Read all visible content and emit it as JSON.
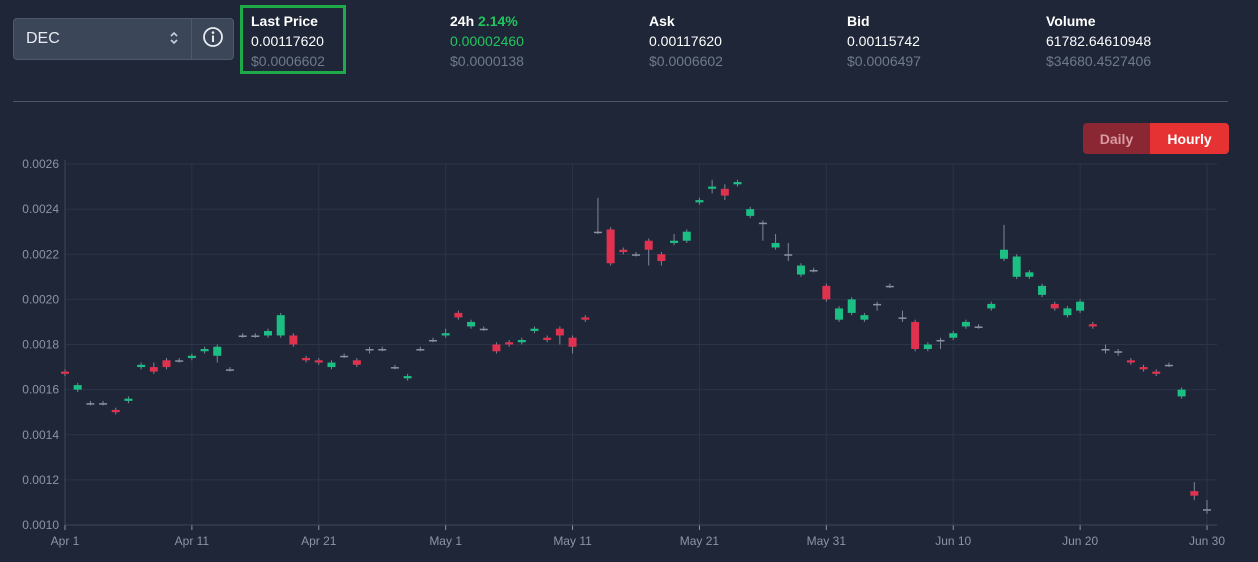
{
  "selector": {
    "symbol": "DEC"
  },
  "stats": {
    "last_price": {
      "label": "Last Price",
      "value": "0.00117620",
      "usd": "$0.0006602"
    },
    "change_24h": {
      "label": "24h",
      "pct": "2.14%",
      "value": "0.00002460",
      "usd": "$0.0000138"
    },
    "ask": {
      "label": "Ask",
      "value": "0.00117620",
      "usd": "$0.0006602"
    },
    "bid": {
      "label": "Bid",
      "value": "0.00115742",
      "usd": "$0.0006497"
    },
    "volume": {
      "label": "Volume",
      "value": "61782.64610948",
      "usd": "$34680.4527406"
    }
  },
  "toggle": {
    "daily": "Daily",
    "hourly": "Hourly",
    "active": "hourly"
  },
  "colors": {
    "up": "#1bbf83",
    "down": "#e0324f",
    "grid": "#2b3547",
    "axis_text": "#8b95a5",
    "background": "#1e2638"
  },
  "chart_data": {
    "type": "candlestick",
    "ylim": [
      0.001,
      0.0026
    ],
    "y_ticks": [
      "0.0010",
      "0.0012",
      "0.0014",
      "0.0016",
      "0.0018",
      "0.0020",
      "0.0022",
      "0.0024",
      "0.0026"
    ],
    "x_ticks": [
      {
        "label": "Apr 1",
        "day": 1
      },
      {
        "label": "Apr 11",
        "day": 11
      },
      {
        "label": "Apr 21",
        "day": 21
      },
      {
        "label": "May 1",
        "day": 31
      },
      {
        "label": "May 11",
        "day": 41
      },
      {
        "label": "May 21",
        "day": 51
      },
      {
        "label": "May 31",
        "day": 61
      },
      {
        "label": "Jun 10",
        "day": 71
      },
      {
        "label": "Jun 20",
        "day": 81
      },
      {
        "label": "Jun 30",
        "day": 91
      }
    ],
    "grid": true,
    "candles": [
      {
        "day": 1,
        "open": 0.00168,
        "close": 0.00167,
        "high": 0.00169,
        "low": 0.00166
      },
      {
        "day": 2,
        "open": 0.0016,
        "close": 0.00162,
        "high": 0.00163,
        "low": 0.00159
      },
      {
        "day": 3,
        "open": 0.00154,
        "close": 0.00154,
        "high": 0.00155,
        "low": 0.00153
      },
      {
        "day": 4,
        "open": 0.00154,
        "close": 0.00154,
        "high": 0.00155,
        "low": 0.00153
      },
      {
        "day": 5,
        "open": 0.00151,
        "close": 0.0015,
        "high": 0.00152,
        "low": 0.00149
      },
      {
        "day": 6,
        "open": 0.00155,
        "close": 0.00156,
        "high": 0.00157,
        "low": 0.00154
      },
      {
        "day": 7,
        "open": 0.0017,
        "close": 0.00171,
        "high": 0.00172,
        "low": 0.00169
      },
      {
        "day": 8,
        "open": 0.0017,
        "close": 0.00168,
        "high": 0.00172,
        "low": 0.00167
      },
      {
        "day": 9,
        "open": 0.00173,
        "close": 0.0017,
        "high": 0.00174,
        "low": 0.00169
      },
      {
        "day": 10,
        "open": 0.00173,
        "close": 0.00173,
        "high": 0.00174,
        "low": 0.00172
      },
      {
        "day": 11,
        "open": 0.00174,
        "close": 0.00175,
        "high": 0.00176,
        "low": 0.00173
      },
      {
        "day": 12,
        "open": 0.00177,
        "close": 0.00178,
        "high": 0.00179,
        "low": 0.00176
      },
      {
        "day": 13,
        "open": 0.00175,
        "close": 0.00179,
        "high": 0.0018,
        "low": 0.00172
      },
      {
        "day": 14,
        "open": 0.00169,
        "close": 0.00169,
        "high": 0.0017,
        "low": 0.00168
      },
      {
        "day": 15,
        "open": 0.00184,
        "close": 0.00184,
        "high": 0.00185,
        "low": 0.00183
      },
      {
        "day": 16,
        "open": 0.00184,
        "close": 0.00184,
        "high": 0.00185,
        "low": 0.00183
      },
      {
        "day": 17,
        "open": 0.00184,
        "close": 0.00186,
        "high": 0.00187,
        "low": 0.00183
      },
      {
        "day": 18,
        "open": 0.00184,
        "close": 0.00193,
        "high": 0.00194,
        "low": 0.00183
      },
      {
        "day": 19,
        "open": 0.00184,
        "close": 0.0018,
        "high": 0.00185,
        "low": 0.00179
      },
      {
        "day": 20,
        "open": 0.00174,
        "close": 0.00173,
        "high": 0.00175,
        "low": 0.00172
      },
      {
        "day": 21,
        "open": 0.00173,
        "close": 0.00172,
        "high": 0.00174,
        "low": 0.00171
      },
      {
        "day": 22,
        "open": 0.0017,
        "close": 0.00172,
        "high": 0.00173,
        "low": 0.00169
      },
      {
        "day": 23,
        "open": 0.00175,
        "close": 0.00175,
        "high": 0.00176,
        "low": 0.00174
      },
      {
        "day": 24,
        "open": 0.00173,
        "close": 0.00171,
        "high": 0.00174,
        "low": 0.0017
      },
      {
        "day": 25,
        "open": 0.00178,
        "close": 0.00178,
        "high": 0.00179,
        "low": 0.00176
      },
      {
        "day": 26,
        "open": 0.00178,
        "close": 0.00178,
        "high": 0.00179,
        "low": 0.00177
      },
      {
        "day": 27,
        "open": 0.0017,
        "close": 0.0017,
        "high": 0.00171,
        "low": 0.00169
      },
      {
        "day": 28,
        "open": 0.00165,
        "close": 0.00166,
        "high": 0.00167,
        "low": 0.00164
      },
      {
        "day": 29,
        "open": 0.00178,
        "close": 0.00178,
        "high": 0.00179,
        "low": 0.00177
      },
      {
        "day": 30,
        "open": 0.00182,
        "close": 0.00182,
        "high": 0.00183,
        "low": 0.00181
      },
      {
        "day": 31,
        "open": 0.00184,
        "close": 0.00185,
        "high": 0.00187,
        "low": 0.00183
      },
      {
        "day": 32,
        "open": 0.00194,
        "close": 0.00192,
        "high": 0.00195,
        "low": 0.00191
      },
      {
        "day": 33,
        "open": 0.00188,
        "close": 0.0019,
        "high": 0.00191,
        "low": 0.00187
      },
      {
        "day": 34,
        "open": 0.00187,
        "close": 0.00187,
        "high": 0.00188,
        "low": 0.00186
      },
      {
        "day": 35,
        "open": 0.0018,
        "close": 0.00177,
        "high": 0.00181,
        "low": 0.00176
      },
      {
        "day": 36,
        "open": 0.00181,
        "close": 0.0018,
        "high": 0.00182,
        "low": 0.00179
      },
      {
        "day": 37,
        "open": 0.00181,
        "close": 0.00182,
        "high": 0.00183,
        "low": 0.0018
      },
      {
        "day": 38,
        "open": 0.00186,
        "close": 0.00187,
        "high": 0.00188,
        "low": 0.00185
      },
      {
        "day": 39,
        "open": 0.00183,
        "close": 0.00182,
        "high": 0.00184,
        "low": 0.00181
      },
      {
        "day": 40,
        "open": 0.00187,
        "close": 0.00184,
        "high": 0.00188,
        "low": 0.0018
      },
      {
        "day": 41,
        "open": 0.00183,
        "close": 0.00179,
        "high": 0.00184,
        "low": 0.00176
      },
      {
        "day": 42,
        "open": 0.00192,
        "close": 0.00191,
        "high": 0.00193,
        "low": 0.0019
      },
      {
        "day": 43,
        "open": 0.0023,
        "close": 0.0023,
        "high": 0.00245,
        "low": 0.00229
      },
      {
        "day": 44,
        "open": 0.00231,
        "close": 0.00216,
        "high": 0.00232,
        "low": 0.00215
      },
      {
        "day": 45,
        "open": 0.00222,
        "close": 0.00221,
        "high": 0.00223,
        "low": 0.0022
      },
      {
        "day": 46,
        "open": 0.0022,
        "close": 0.0022,
        "high": 0.00221,
        "low": 0.00219
      },
      {
        "day": 47,
        "open": 0.00226,
        "close": 0.00222,
        "high": 0.00227,
        "low": 0.00215
      },
      {
        "day": 48,
        "open": 0.0022,
        "close": 0.00217,
        "high": 0.00221,
        "low": 0.00215
      },
      {
        "day": 49,
        "open": 0.00225,
        "close": 0.00226,
        "high": 0.00229,
        "low": 0.00224
      },
      {
        "day": 50,
        "open": 0.00226,
        "close": 0.0023,
        "high": 0.00231,
        "low": 0.00225
      },
      {
        "day": 51,
        "open": 0.00243,
        "close": 0.00244,
        "high": 0.00245,
        "low": 0.00242
      },
      {
        "day": 52,
        "open": 0.00249,
        "close": 0.0025,
        "high": 0.00253,
        "low": 0.00247
      },
      {
        "day": 53,
        "open": 0.00249,
        "close": 0.00246,
        "high": 0.00251,
        "low": 0.00244
      },
      {
        "day": 54,
        "open": 0.00251,
        "close": 0.00252,
        "high": 0.00253,
        "low": 0.0025
      },
      {
        "day": 55,
        "open": 0.00237,
        "close": 0.0024,
        "high": 0.00241,
        "low": 0.00236
      },
      {
        "day": 56,
        "open": 0.00234,
        "close": 0.00234,
        "high": 0.00235,
        "low": 0.00226
      },
      {
        "day": 57,
        "open": 0.00223,
        "close": 0.00225,
        "high": 0.00229,
        "low": 0.00222
      },
      {
        "day": 58,
        "open": 0.0022,
        "close": 0.0022,
        "high": 0.00225,
        "low": 0.00217
      },
      {
        "day": 59,
        "open": 0.00211,
        "close": 0.00215,
        "high": 0.00216,
        "low": 0.0021
      },
      {
        "day": 60,
        "open": 0.00213,
        "close": 0.00213,
        "high": 0.00214,
        "low": 0.00212
      },
      {
        "day": 61,
        "open": 0.00206,
        "close": 0.002,
        "high": 0.00207,
        "low": 0.00199
      },
      {
        "day": 62,
        "open": 0.00191,
        "close": 0.00196,
        "high": 0.00197,
        "low": 0.0019
      },
      {
        "day": 63,
        "open": 0.00194,
        "close": 0.002,
        "high": 0.00201,
        "low": 0.00193
      },
      {
        "day": 64,
        "open": 0.00191,
        "close": 0.00193,
        "high": 0.00194,
        "low": 0.0019
      },
      {
        "day": 65,
        "open": 0.00198,
        "close": 0.00198,
        "high": 0.00199,
        "low": 0.00195
      },
      {
        "day": 66,
        "open": 0.00206,
        "close": 0.00206,
        "high": 0.00207,
        "low": 0.00205
      },
      {
        "day": 67,
        "open": 0.00192,
        "close": 0.00192,
        "high": 0.00195,
        "low": 0.0019
      },
      {
        "day": 68,
        "open": 0.0019,
        "close": 0.00178,
        "high": 0.00191,
        "low": 0.00177
      },
      {
        "day": 69,
        "open": 0.00178,
        "close": 0.0018,
        "high": 0.00181,
        "low": 0.00177
      },
      {
        "day": 70,
        "open": 0.00182,
        "close": 0.00182,
        "high": 0.00183,
        "low": 0.00178
      },
      {
        "day": 71,
        "open": 0.00183,
        "close": 0.00185,
        "high": 0.00186,
        "low": 0.00182
      },
      {
        "day": 72,
        "open": 0.00188,
        "close": 0.0019,
        "high": 0.00191,
        "low": 0.00187
      },
      {
        "day": 73,
        "open": 0.00188,
        "close": 0.00188,
        "high": 0.00189,
        "low": 0.00187
      },
      {
        "day": 74,
        "open": 0.00196,
        "close": 0.00198,
        "high": 0.00199,
        "low": 0.00195
      },
      {
        "day": 75,
        "open": 0.00218,
        "close": 0.00222,
        "high": 0.00233,
        "low": 0.00217
      },
      {
        "day": 76,
        "open": 0.0021,
        "close": 0.00219,
        "high": 0.0022,
        "low": 0.00209
      },
      {
        "day": 77,
        "open": 0.0021,
        "close": 0.00212,
        "high": 0.00213,
        "low": 0.00209
      },
      {
        "day": 78,
        "open": 0.00202,
        "close": 0.00206,
        "high": 0.00207,
        "low": 0.00201
      },
      {
        "day": 79,
        "open": 0.00198,
        "close": 0.00196,
        "high": 0.00199,
        "low": 0.00195
      },
      {
        "day": 80,
        "open": 0.00193,
        "close": 0.00196,
        "high": 0.00197,
        "low": 0.00192
      },
      {
        "day": 81,
        "open": 0.00195,
        "close": 0.00199,
        "high": 0.002,
        "low": 0.00194
      },
      {
        "day": 82,
        "open": 0.00189,
        "close": 0.00188,
        "high": 0.0019,
        "low": 0.00187
      },
      {
        "day": 83,
        "open": 0.00178,
        "close": 0.00178,
        "high": 0.0018,
        "low": 0.00176
      },
      {
        "day": 84,
        "open": 0.00177,
        "close": 0.00177,
        "high": 0.00178,
        "low": 0.00175
      },
      {
        "day": 85,
        "open": 0.00173,
        "close": 0.00172,
        "high": 0.00174,
        "low": 0.00171
      },
      {
        "day": 86,
        "open": 0.0017,
        "close": 0.00169,
        "high": 0.00171,
        "low": 0.00168
      },
      {
        "day": 87,
        "open": 0.00168,
        "close": 0.00167,
        "high": 0.00169,
        "low": 0.00166
      },
      {
        "day": 88,
        "open": 0.00171,
        "close": 0.00171,
        "high": 0.00172,
        "low": 0.0017
      },
      {
        "day": 89,
        "open": 0.00157,
        "close": 0.0016,
        "high": 0.00161,
        "low": 0.00156
      },
      {
        "day": 90,
        "open": 0.00115,
        "close": 0.00113,
        "high": 0.00119,
        "low": 0.00111
      },
      {
        "day": 91,
        "open": 0.00107,
        "close": 0.00107,
        "high": 0.00111,
        "low": 0.00105
      }
    ]
  }
}
